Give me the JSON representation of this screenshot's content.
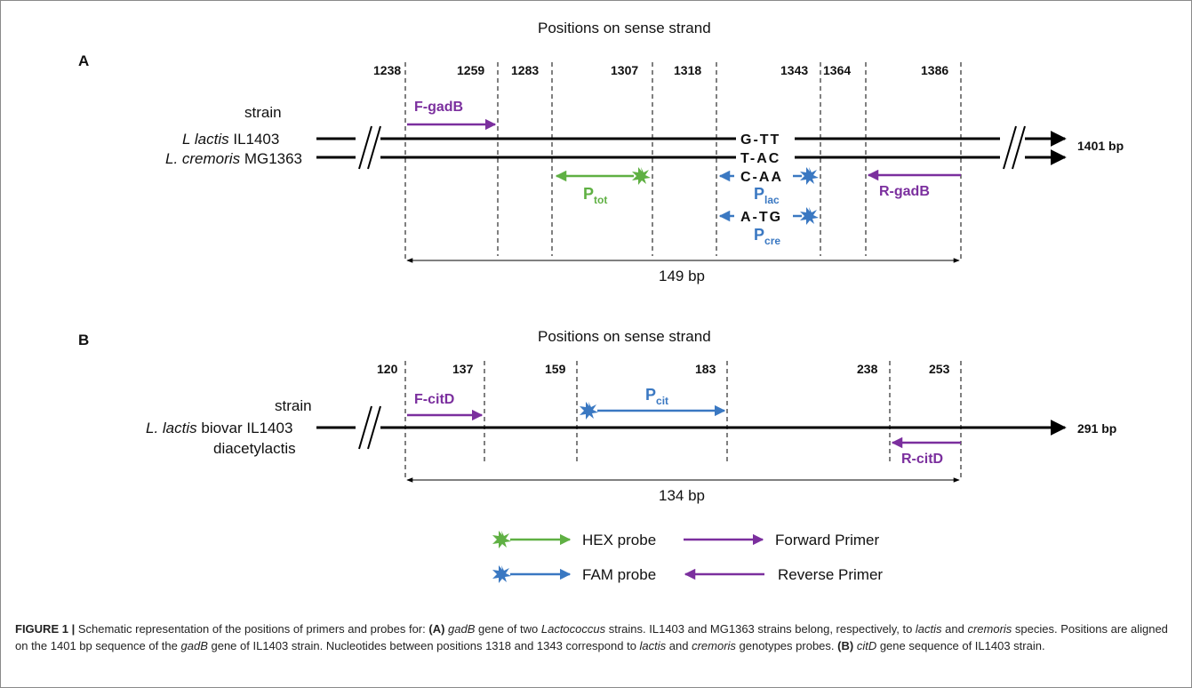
{
  "panel_a": {
    "letter": "A",
    "heading": "Positions on sense strand",
    "positions": [
      "1238",
      "1259",
      "1283",
      "1307",
      "1318",
      "1343",
      "1364",
      "1386"
    ],
    "strain_header": "strain",
    "strain1_species": "L lactis",
    "strain1_id": "IL1403",
    "strain2_species": "L. cremoris",
    "strain2_id": "MG1363",
    "length": "1401 bp",
    "seq_top": "G-TT",
    "seq_bottom": "T-AC",
    "forward_primer": "F-gadB",
    "reverse_primer": "R-gadB",
    "probe_tot": {
      "main": "P",
      "sub": "tot"
    },
    "probe_lac": {
      "main": "P",
      "sub": "lac",
      "seq": "C-AA"
    },
    "probe_cre": {
      "main": "P",
      "sub": "cre",
      "seq": "A-TG"
    },
    "span": "149 bp"
  },
  "panel_b": {
    "letter": "B",
    "heading": "Positions on sense strand",
    "positions": [
      "120",
      "137",
      "159",
      "183",
      "238",
      "253"
    ],
    "strain_header": "strain",
    "strain_species": "L. lactis",
    "strain_biovar": "biovar",
    "strain_id": "IL1403",
    "strain_line2": "diacetylactis",
    "length": "291 bp",
    "forward_primer": "F-citD",
    "reverse_primer": "R-citD",
    "probe_cit": {
      "main": "P",
      "sub": "cit"
    },
    "span": "134 bp"
  },
  "legend": {
    "hex": "HEX probe",
    "fam": "FAM probe",
    "forward": "Forward Primer",
    "reverse": "Reverse Primer"
  },
  "colors": {
    "primer": "#7b2f9e",
    "hex_probe": "#5fb043",
    "fam_probe": "#3a78c2",
    "dna_line": "#000000"
  },
  "caption": {
    "figure_label": "FIGURE 1 |",
    "text_1": " Schematic representation of the positions of primers and probes for: ",
    "a_label": "(A)",
    "gene_a": "gadB",
    "text_2": " gene of two ",
    "genus": "Lactococcus",
    "text_3": " strains. IL1403 and MG1363 strains belong, respectively, to ",
    "lactis_1": "lactis",
    "text_4": " and ",
    "cremoris_1": "cremoris",
    "text_5": " species. Positions are aligned on the 1401 bp sequence of the ",
    "gene_a2": "gadB",
    "text_6": " gene of IL1403 strain. Nucleotides between positions 1318 and 1343 correspond to ",
    "lactis_2": "lactis",
    "text_7": " and ",
    "cremoris_2": "cremoris",
    "text_8": " genotypes probes. ",
    "b_label": "(B)",
    "gene_b": "citD",
    "text_9": " gene sequence of IL1403 strain."
  }
}
